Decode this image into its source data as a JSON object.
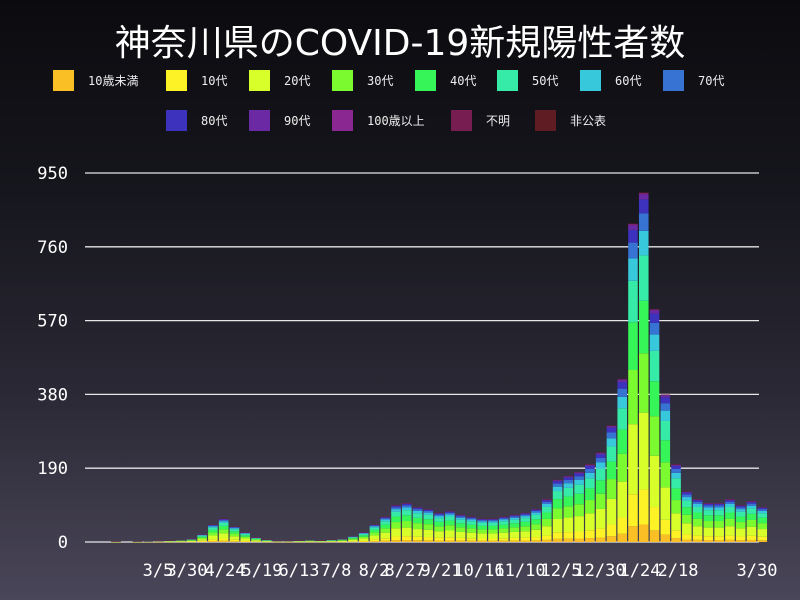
{
  "chart_data": {
    "type": "bar",
    "stacked": true,
    "title": "神奈川県のCOVID-19新規陽性者数",
    "xlabel": "",
    "ylabel": "",
    "ylim": [
      0,
      1010
    ],
    "yticks": [
      0,
      190,
      380,
      570,
      760,
      950
    ],
    "ytick_labels": [
      "0",
      "190",
      "380",
      "570",
      "760",
      "950"
    ],
    "xtick_labels": [
      "3/5",
      "3/30",
      "4/24",
      "5/19",
      "6/13",
      "7/8",
      "8/2",
      "8/27",
      "9/21",
      "10/16",
      "11/10",
      "12/5",
      "12/30",
      "1/24",
      "2/18",
      "3/30"
    ],
    "grid": true,
    "legend_placement": "top",
    "x": [
      "2020-01-20",
      "2020-01-27",
      "2020-02-03",
      "2020-02-10",
      "2020-02-17",
      "2020-02-24",
      "2020-03-02",
      "2020-03-09",
      "2020-03-16",
      "2020-03-23",
      "2020-03-30",
      "2020-04-06",
      "2020-04-13",
      "2020-04-20",
      "2020-04-27",
      "2020-05-04",
      "2020-05-11",
      "2020-05-18",
      "2020-05-25",
      "2020-06-01",
      "2020-06-08",
      "2020-06-15",
      "2020-06-22",
      "2020-06-29",
      "2020-07-06",
      "2020-07-13",
      "2020-07-20",
      "2020-07-27",
      "2020-08-03",
      "2020-08-10",
      "2020-08-17",
      "2020-08-24",
      "2020-08-31",
      "2020-09-07",
      "2020-09-14",
      "2020-09-21",
      "2020-09-28",
      "2020-10-05",
      "2020-10-12",
      "2020-10-19",
      "2020-10-26",
      "2020-11-02",
      "2020-11-09",
      "2020-11-16",
      "2020-11-23",
      "2020-11-30",
      "2020-12-07",
      "2020-12-14",
      "2020-12-21",
      "2020-12-28",
      "2021-01-04",
      "2021-01-11",
      "2021-01-18",
      "2021-01-25",
      "2021-02-01",
      "2021-02-08",
      "2021-02-15",
      "2021-02-22",
      "2021-03-01",
      "2021-03-08",
      "2021-03-15",
      "2021-03-22",
      "2021-03-29"
    ],
    "totals": [
      0,
      0,
      1,
      0,
      1,
      2,
      3,
      4,
      5,
      8,
      20,
      45,
      60,
      40,
      25,
      12,
      6,
      3,
      3,
      4,
      5,
      4,
      6,
      8,
      15,
      25,
      45,
      65,
      95,
      100,
      90,
      85,
      75,
      80,
      70,
      65,
      60,
      60,
      65,
      70,
      75,
      85,
      110,
      160,
      170,
      180,
      200,
      230,
      300,
      420,
      820,
      900,
      600,
      380,
      200,
      130,
      110,
      100,
      100,
      110,
      95,
      105,
      90
    ],
    "series": [
      {
        "name": "10歳未満",
        "color": "#fbbf26",
        "share": 0.05
      },
      {
        "name": "10代",
        "color": "#fdf225",
        "share": 0.1
      },
      {
        "name": "20代",
        "color": "#d9ff2a",
        "share": 0.22
      },
      {
        "name": "30代",
        "color": "#7bfb2f",
        "share": 0.17
      },
      {
        "name": "40代",
        "color": "#36f559",
        "share": 0.15
      },
      {
        "name": "50代",
        "color": "#36eba8",
        "share": 0.13
      },
      {
        "name": "60代",
        "color": "#38c8dc",
        "share": 0.07
      },
      {
        "name": "70代",
        "color": "#3673d2",
        "share": 0.05
      },
      {
        "name": "80代",
        "color": "#3c32be",
        "share": 0.04
      },
      {
        "name": "90代",
        "color": "#6b2aa3",
        "share": 0.015
      },
      {
        "name": "100歳以上",
        "color": "#8b2790",
        "share": 0.002
      },
      {
        "name": "不明",
        "color": "#781d52",
        "share": 0.002
      },
      {
        "name": "非公表",
        "color": "#5f1c22",
        "share": 0.001
      }
    ]
  }
}
